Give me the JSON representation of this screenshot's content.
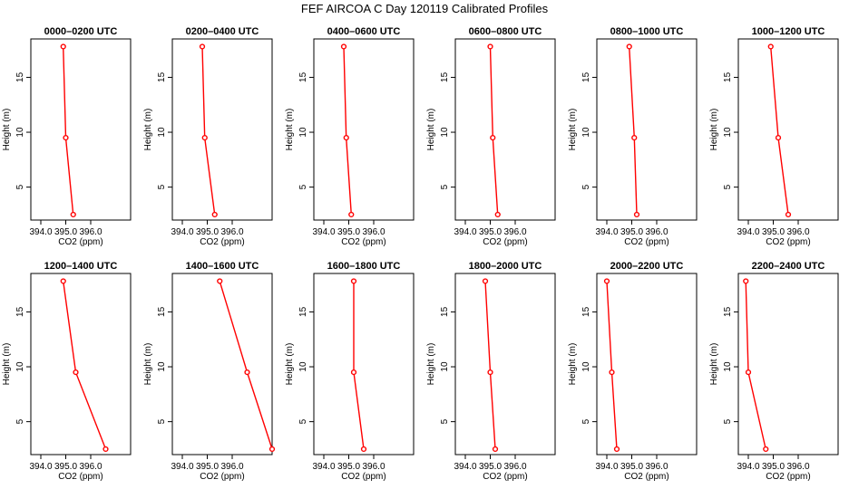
{
  "page_title": "FEF AIRCOA C  Day 120119  Calibrated Profiles",
  "colors": {
    "series": "#ff0000",
    "axes": "#000000",
    "background": "#ffffff"
  },
  "chart_data": [
    {
      "type": "line",
      "title": "0000–0200 UTC",
      "xlabel": "CO2 (ppm)",
      "ylabel": "Height (m)",
      "xlim": [
        393.6,
        397.6
      ],
      "ylim": [
        2,
        18.5
      ],
      "xticks": [
        "394.0",
        "395.0",
        "396.0"
      ],
      "yticks": [
        "5",
        "10",
        "15"
      ],
      "series": [
        {
          "x": [
            395.3,
            395.0,
            394.9
          ],
          "y": [
            2.5,
            9.5,
            17.8
          ]
        }
      ]
    },
    {
      "type": "line",
      "title": "0200–0400 UTC",
      "xlabel": "CO2 (ppm)",
      "ylabel": "Height (m)",
      "xlim": [
        393.6,
        397.6
      ],
      "ylim": [
        2,
        18.5
      ],
      "xticks": [
        "394.0",
        "395.0",
        "396.0"
      ],
      "yticks": [
        "5",
        "10",
        "15"
      ],
      "series": [
        {
          "x": [
            395.3,
            394.9,
            394.8
          ],
          "y": [
            2.5,
            9.5,
            17.8
          ]
        }
      ]
    },
    {
      "type": "line",
      "title": "0400–0600 UTC",
      "xlabel": "CO2 (ppm)",
      "ylabel": "Height (m)",
      "xlim": [
        393.6,
        397.6
      ],
      "ylim": [
        2,
        18.5
      ],
      "xticks": [
        "394.0",
        "395.0",
        "396.0"
      ],
      "yticks": [
        "5",
        "10",
        "15"
      ],
      "series": [
        {
          "x": [
            395.1,
            394.9,
            394.8
          ],
          "y": [
            2.5,
            9.5,
            17.8
          ]
        }
      ]
    },
    {
      "type": "line",
      "title": "0600–0800 UTC",
      "xlabel": "CO2 (ppm)",
      "ylabel": "Height (m)",
      "xlim": [
        393.6,
        397.6
      ],
      "ylim": [
        2,
        18.5
      ],
      "xticks": [
        "394.0",
        "395.0",
        "396.0"
      ],
      "yticks": [
        "5",
        "10",
        "15"
      ],
      "series": [
        {
          "x": [
            395.3,
            395.1,
            395.0
          ],
          "y": [
            2.5,
            9.5,
            17.8
          ]
        }
      ]
    },
    {
      "type": "line",
      "title": "0800–1000 UTC",
      "xlabel": "CO2 (ppm)",
      "ylabel": "Height (m)",
      "xlim": [
        393.6,
        397.6
      ],
      "ylim": [
        2,
        18.5
      ],
      "xticks": [
        "394.0",
        "395.0",
        "396.0"
      ],
      "yticks": [
        "5",
        "10",
        "15"
      ],
      "series": [
        {
          "x": [
            395.2,
            395.1,
            394.9
          ],
          "y": [
            2.5,
            9.5,
            17.8
          ]
        }
      ]
    },
    {
      "type": "line",
      "title": "1000–1200 UTC",
      "xlabel": "CO2 (ppm)",
      "ylabel": "Height (m)",
      "xlim": [
        393.6,
        397.6
      ],
      "ylim": [
        2,
        18.5
      ],
      "xticks": [
        "394.0",
        "395.0",
        "396.0"
      ],
      "yticks": [
        "5",
        "10",
        "15"
      ],
      "series": [
        {
          "x": [
            395.6,
            395.2,
            394.9
          ],
          "y": [
            2.5,
            9.5,
            17.8
          ]
        }
      ]
    },
    {
      "type": "line",
      "title": "1200–1400 UTC",
      "xlabel": "CO2 (ppm)",
      "ylabel": "Height (m)",
      "xlim": [
        393.6,
        397.6
      ],
      "ylim": [
        2,
        18.5
      ],
      "xticks": [
        "394.0",
        "395.0",
        "396.0"
      ],
      "yticks": [
        "5",
        "10",
        "15"
      ],
      "series": [
        {
          "x": [
            396.6,
            395.4,
            394.9
          ],
          "y": [
            2.5,
            9.5,
            17.8
          ]
        }
      ]
    },
    {
      "type": "line",
      "title": "1400–1600 UTC",
      "xlabel": "CO2 (ppm)",
      "ylabel": "Height (m)",
      "xlim": [
        393.6,
        397.6
      ],
      "ylim": [
        2,
        18.5
      ],
      "xticks": [
        "394.0",
        "395.0",
        "396.0"
      ],
      "yticks": [
        "5",
        "10",
        "15"
      ],
      "series": [
        {
          "x": [
            397.6,
            396.6,
            395.5
          ],
          "y": [
            2.5,
            9.5,
            17.8
          ]
        }
      ]
    },
    {
      "type": "line",
      "title": "1600–1800 UTC",
      "xlabel": "CO2 (ppm)",
      "ylabel": "Height (m)",
      "xlim": [
        393.6,
        397.6
      ],
      "ylim": [
        2,
        18.5
      ],
      "xticks": [
        "394.0",
        "395.0",
        "396.0"
      ],
      "yticks": [
        "5",
        "10",
        "15"
      ],
      "series": [
        {
          "x": [
            395.6,
            395.2,
            395.2
          ],
          "y": [
            2.5,
            9.5,
            17.8
          ]
        }
      ]
    },
    {
      "type": "line",
      "title": "1800–2000 UTC",
      "xlabel": "CO2 (ppm)",
      "ylabel": "Height (m)",
      "xlim": [
        393.6,
        397.6
      ],
      "ylim": [
        2,
        18.5
      ],
      "xticks": [
        "394.0",
        "395.0",
        "396.0"
      ],
      "yticks": [
        "5",
        "10",
        "15"
      ],
      "series": [
        {
          "x": [
            395.2,
            395.0,
            394.8
          ],
          "y": [
            2.5,
            9.5,
            17.8
          ]
        }
      ]
    },
    {
      "type": "line",
      "title": "2000–2200 UTC",
      "xlabel": "CO2 (ppm)",
      "ylabel": "Height (m)",
      "xlim": [
        393.6,
        397.6
      ],
      "ylim": [
        2,
        18.5
      ],
      "xticks": [
        "394.0",
        "395.0",
        "396.0"
      ],
      "yticks": [
        "5",
        "10",
        "15"
      ],
      "series": [
        {
          "x": [
            394.4,
            394.2,
            394.0
          ],
          "y": [
            2.5,
            9.5,
            17.8
          ]
        }
      ]
    },
    {
      "type": "line",
      "title": "2200–2400 UTC",
      "xlabel": "CO2 (ppm)",
      "ylabel": "Height (m)",
      "xlim": [
        393.6,
        397.6
      ],
      "ylim": [
        2,
        18.5
      ],
      "xticks": [
        "394.0",
        "395.0",
        "396.0"
      ],
      "yticks": [
        "5",
        "10",
        "15"
      ],
      "series": [
        {
          "x": [
            394.7,
            394.0,
            393.9
          ],
          "y": [
            2.5,
            9.5,
            17.8
          ]
        }
      ]
    }
  ]
}
